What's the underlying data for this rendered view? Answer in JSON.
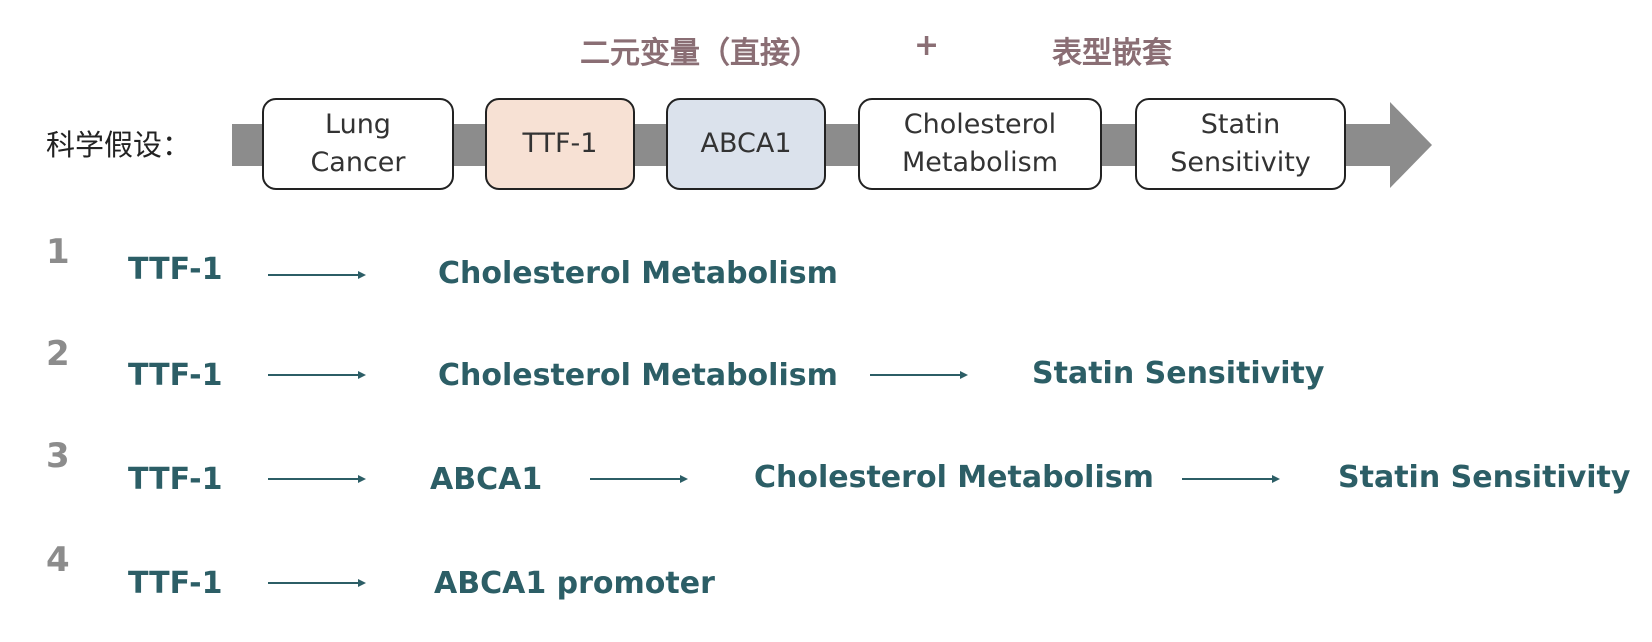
{
  "header": {
    "left": "二元变量（直接）",
    "plus": "+",
    "right": "表型嵌套"
  },
  "hypothesis": {
    "label": "科学假设：",
    "nodes": [
      {
        "text": "Lung\nCancer"
      },
      {
        "text": "TTF-1"
      },
      {
        "text": "ABCA1"
      },
      {
        "text": "Cholesterol\nMetabolism"
      },
      {
        "text": "Statin\nSensitivity"
      }
    ]
  },
  "rows": [
    {
      "num": "1",
      "terms": [
        "TTF-1",
        "Cholesterol Metabolism"
      ]
    },
    {
      "num": "2",
      "terms": [
        "TTF-1",
        "Cholesterol Metabolism",
        "Statin Sensitivity"
      ]
    },
    {
      "num": "3",
      "terms": [
        "TTF-1",
        "ABCA1",
        "Cholesterol Metabolism",
        "Statin Sensitivity"
      ]
    },
    {
      "num": "4",
      "terms": [
        "TTF-1",
        "ABCA1 promoter"
      ]
    }
  ],
  "colors": {
    "header": "#8a6e74",
    "term": "#2c5e66",
    "number": "#8c8c8c",
    "band": "#8c8c8c",
    "ttf1_fill": "#f7e1d4",
    "abca1_fill": "#dbe2ec"
  }
}
